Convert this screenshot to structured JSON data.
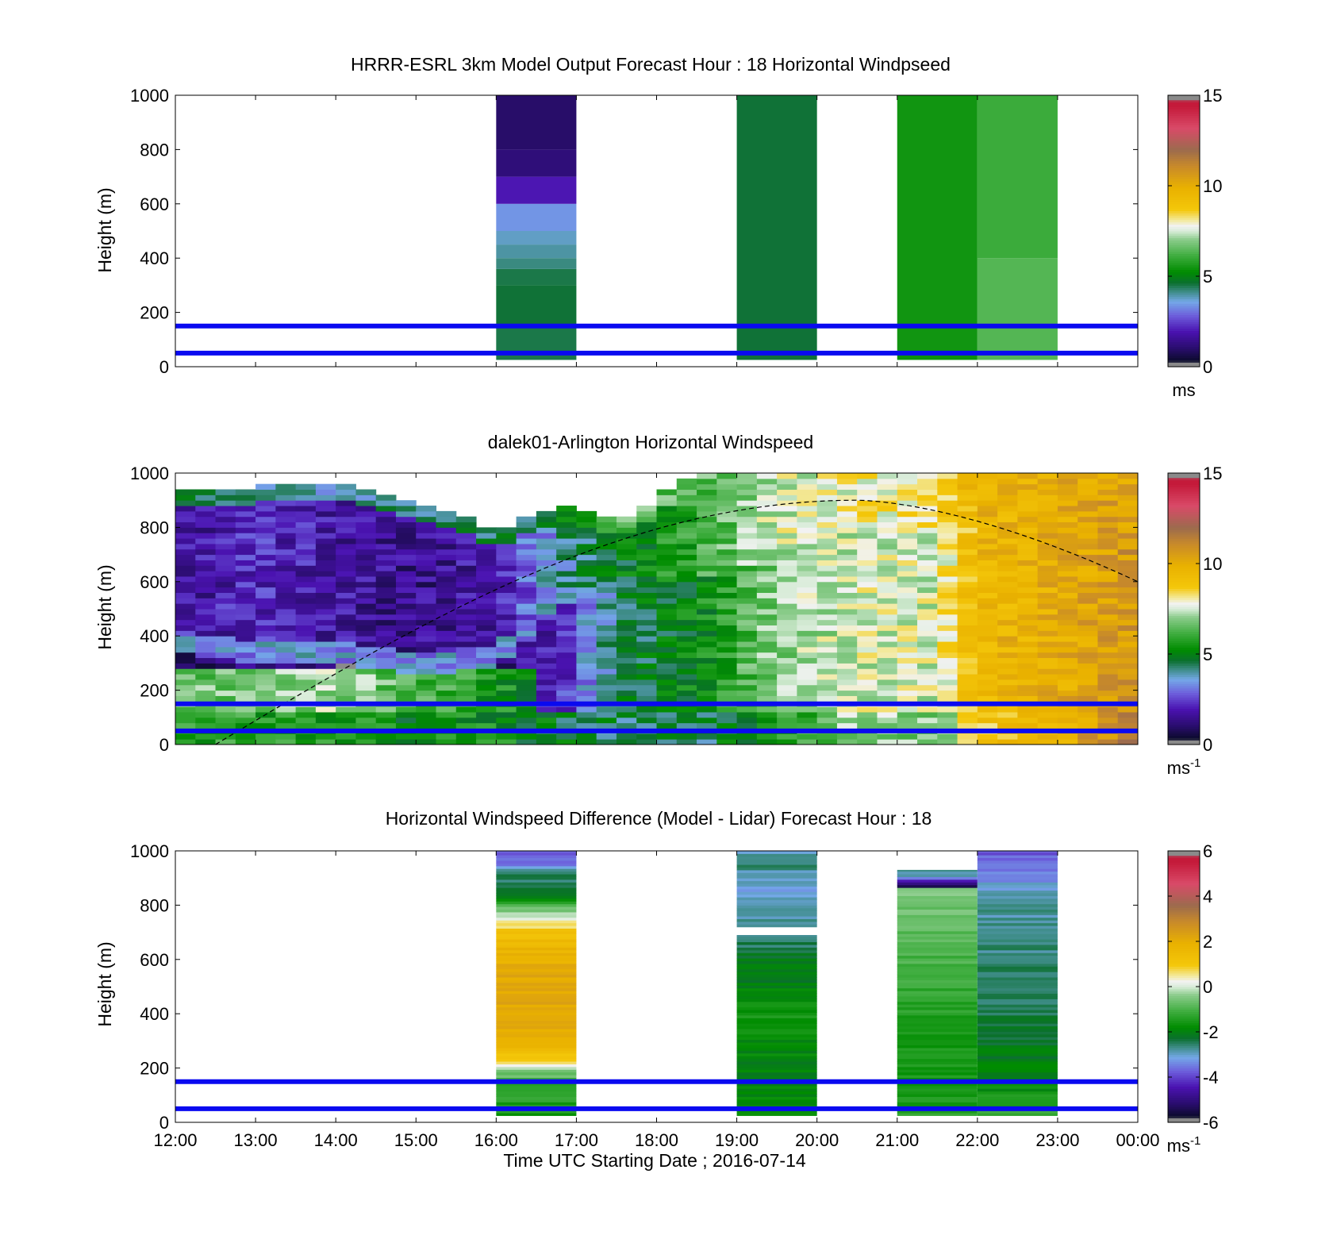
{
  "chart_data": [
    {
      "type": "heatmap",
      "title": "HRRR-ESRL 3km Model Output   Forecast Hour : 18 Horizontal Windpseed",
      "ylabel": "Height (m)",
      "ylim": [
        0,
        1000
      ],
      "yticks": [
        "0",
        "200",
        "400",
        "600",
        "800",
        "1000"
      ],
      "xticks": [],
      "colorbar": {
        "min": 0,
        "max": 15,
        "ticks": [
          "0",
          "5",
          "10",
          "15"
        ],
        "unit": "ms",
        "unit_sup": ""
      },
      "reference_heights": [
        50,
        150
      ],
      "columns": [
        {
          "t0": 16,
          "t1": 17,
          "bottom": 25,
          "levels": [
            [
              25,
              50,
              4.5
            ],
            [
              50,
              150,
              4.5
            ],
            [
              150,
              300,
              4.6
            ],
            [
              300,
              360,
              4.5
            ],
            [
              360,
              400,
              4.2
            ],
            [
              400,
              450,
              4.0
            ],
            [
              450,
              500,
              3.8
            ],
            [
              500,
              600,
              3.4
            ],
            [
              600,
              700,
              2.0
            ],
            [
              700,
              800,
              1.2
            ],
            [
              800,
              1000,
              1.0
            ]
          ]
        },
        {
          "t0": 19,
          "t1": 20,
          "bottom": 25,
          "levels": [
            [
              25,
              1000,
              4.6
            ]
          ]
        },
        {
          "t0": 21,
          "t1": 22,
          "bottom": 25,
          "levels": [
            [
              25,
              50,
              5.4
            ],
            [
              50,
              1000,
              5.5
            ]
          ]
        },
        {
          "t0": 22,
          "t1": 23,
          "bottom": 25,
          "levels": [
            [
              25,
              400,
              6.4
            ],
            [
              400,
              1000,
              6.1
            ]
          ]
        }
      ]
    },
    {
      "type": "heatmap",
      "title": "dalek01-Arlington  Horizontal Windspeed",
      "ylabel": "Height (m)",
      "ylim": [
        0,
        1000
      ],
      "yticks": [
        "0",
        "200",
        "400",
        "600",
        "800",
        "1000"
      ],
      "xticks": [],
      "colorbar": {
        "min": 0,
        "max": 15,
        "ticks": [
          "0",
          "5",
          "10",
          "15"
        ],
        "unit": "ms",
        "unit_sup": "-1"
      },
      "reference_heights": [
        50,
        150
      ],
      "time_range": [
        12,
        24
      ],
      "time_step_hours": 0.25,
      "boundary_layer_curve": {
        "t_start": 12.5,
        "t_peak": 20.5,
        "h_peak": 900,
        "t_end": 24,
        "h_end": 600
      },
      "profile_keypoints": [
        {
          "t": 12.0,
          "surface": 5.6,
          "low": 6.6,
          "mix": 1.0,
          "mix_top": 390,
          "upper": 1.6,
          "top": 930,
          "above": 4.5
        },
        {
          "t": 13.0,
          "surface": 5.8,
          "low": 6.8,
          "mix": 1.2,
          "mix_top": 330,
          "upper": 2.2,
          "top": 950,
          "above": 4.2
        },
        {
          "t": 14.0,
          "surface": 5.6,
          "low": 7.2,
          "mix": 1.0,
          "mix_top": 340,
          "upper": 1.8,
          "top": 960,
          "above": 4.0
        },
        {
          "t": 15.0,
          "surface": 5.2,
          "low": 6.2,
          "mix": 0.8,
          "mix_top": 300,
          "upper": 1.4,
          "top": 900,
          "above": 4.2
        },
        {
          "t": 16.0,
          "surface": 5.5,
          "low": 5.6,
          "mix": 1.3,
          "mix_top": 320,
          "upper": 1.9,
          "top": 790,
          "above": 4.4
        },
        {
          "t": 16.8,
          "surface": 4.8,
          "low": 5.2,
          "mix": 2.2,
          "mix_top": 520,
          "upper": 4.0,
          "top": 880,
          "above": 4.6
        },
        {
          "t": 17.5,
          "surface": 4.4,
          "low": 4.6,
          "mix": 4.4,
          "mix_top": 600,
          "upper": 4.8,
          "top": 820,
          "above": 6.5
        },
        {
          "t": 18.5,
          "surface": 4.3,
          "low": 5.2,
          "mix": 5.2,
          "mix_top": 600,
          "upper": 6.0,
          "top": 1000,
          "above": 6.5
        },
        {
          "t": 19.5,
          "surface": 5.6,
          "low": 6.8,
          "mix": 7.0,
          "mix_top": 700,
          "upper": 7.5,
          "top": 1000,
          "above": 7.5
        },
        {
          "t": 20.5,
          "surface": 7.2,
          "low": 7.5,
          "mix": 7.6,
          "mix_top": 800,
          "upper": 8.0,
          "top": 1000,
          "above": 8.0
        },
        {
          "t": 21.5,
          "surface": 6.8,
          "low": 7.4,
          "mix": 7.6,
          "mix_top": 800,
          "upper": 8.2,
          "top": 1000,
          "above": 8.2
        },
        {
          "t": 22.0,
          "surface": 8.8,
          "low": 9.2,
          "mix": 9.5,
          "mix_top": 800,
          "upper": 9.6,
          "top": 1000,
          "above": 9.6
        },
        {
          "t": 23.0,
          "surface": 9.8,
          "low": 9.8,
          "mix": 10.0,
          "mix_top": 800,
          "upper": 10.0,
          "top": 1000,
          "above": 10.0
        },
        {
          "t": 24.0,
          "surface": 11.5,
          "low": 11.0,
          "mix": 10.8,
          "mix_top": 800,
          "upper": 10.6,
          "top": 1000,
          "above": 10.4
        }
      ]
    },
    {
      "type": "heatmap",
      "title": "Horizontal Windspeed Difference (Model - Lidar) Forecast Hour : 18",
      "ylabel": "Height (m)",
      "xlabel": "Time UTC  Starting Date ; 2016-07-14",
      "ylim": [
        0,
        1000
      ],
      "yticks": [
        "0",
        "200",
        "400",
        "600",
        "800",
        "1000"
      ],
      "xticks": [
        "12:00",
        "13:00",
        "14:00",
        "15:00",
        "16:00",
        "17:00",
        "18:00",
        "19:00",
        "20:00",
        "21:00",
        "22:00",
        "23:00",
        "00:00"
      ],
      "colorbar": {
        "min": -6,
        "max": 6,
        "ticks": [
          "-6",
          "-4",
          "-2",
          "0",
          "2",
          "4",
          "6"
        ],
        "unit": "ms",
        "unit_sup": "-1"
      },
      "reference_heights": [
        50,
        150
      ],
      "columns": [
        {
          "t0": 16,
          "t1": 17,
          "bottom": 25,
          "top": 1000,
          "profile": [
            [
              25,
              -1.6
            ],
            [
              150,
              -1.2
            ],
            [
              200,
              -0.2
            ],
            [
              230,
              0.8
            ],
            [
              270,
              1.6
            ],
            [
              350,
              2.0
            ],
            [
              450,
              2.2
            ],
            [
              550,
              2.1
            ],
            [
              650,
              1.7
            ],
            [
              700,
              1.2
            ],
            [
              750,
              0.2
            ],
            [
              800,
              -1.0
            ],
            [
              850,
              -2.4
            ],
            [
              920,
              -2.6
            ],
            [
              950,
              -3.4
            ],
            [
              1000,
              -3.8
            ]
          ]
        },
        {
          "t0": 19,
          "t1": 20,
          "bottom": 25,
          "top": 690,
          "profile": [
            [
              25,
              -1.8
            ],
            [
              200,
              -2.0
            ],
            [
              400,
              -1.6
            ],
            [
              500,
              -2.0
            ],
            [
              600,
              -2.2
            ],
            [
              690,
              -2.6
            ]
          ]
        },
        {
          "t0": 19,
          "t1": 20,
          "bottom": 720,
          "top": 1000,
          "profile": [
            [
              720,
              -2.8
            ],
            [
              800,
              -3.0
            ],
            [
              860,
              -3.2
            ],
            [
              950,
              -2.6
            ],
            [
              1000,
              -3.0
            ]
          ]
        },
        {
          "t0": 21,
          "t1": 22,
          "bottom": 25,
          "top": 930,
          "profile": [
            [
              25,
              -1.4
            ],
            [
              200,
              -1.6
            ],
            [
              400,
              -1.4
            ],
            [
              600,
              -1.0
            ],
            [
              800,
              -0.6
            ],
            [
              860,
              -0.3
            ],
            [
              870,
              -5.6
            ],
            [
              890,
              -4.4
            ],
            [
              910,
              -3.0
            ],
            [
              930,
              -2.6
            ]
          ]
        },
        {
          "t0": 22,
          "t1": 23,
          "bottom": 25,
          "top": 1000,
          "profile": [
            [
              25,
              -1.2
            ],
            [
              150,
              -1.9
            ],
            [
              400,
              -2.4
            ],
            [
              600,
              -2.6
            ],
            [
              800,
              -2.8
            ],
            [
              870,
              -3.0
            ],
            [
              900,
              -3.4
            ],
            [
              950,
              -3.6
            ],
            [
              1000,
              -3.8
            ]
          ]
        }
      ]
    }
  ]
}
